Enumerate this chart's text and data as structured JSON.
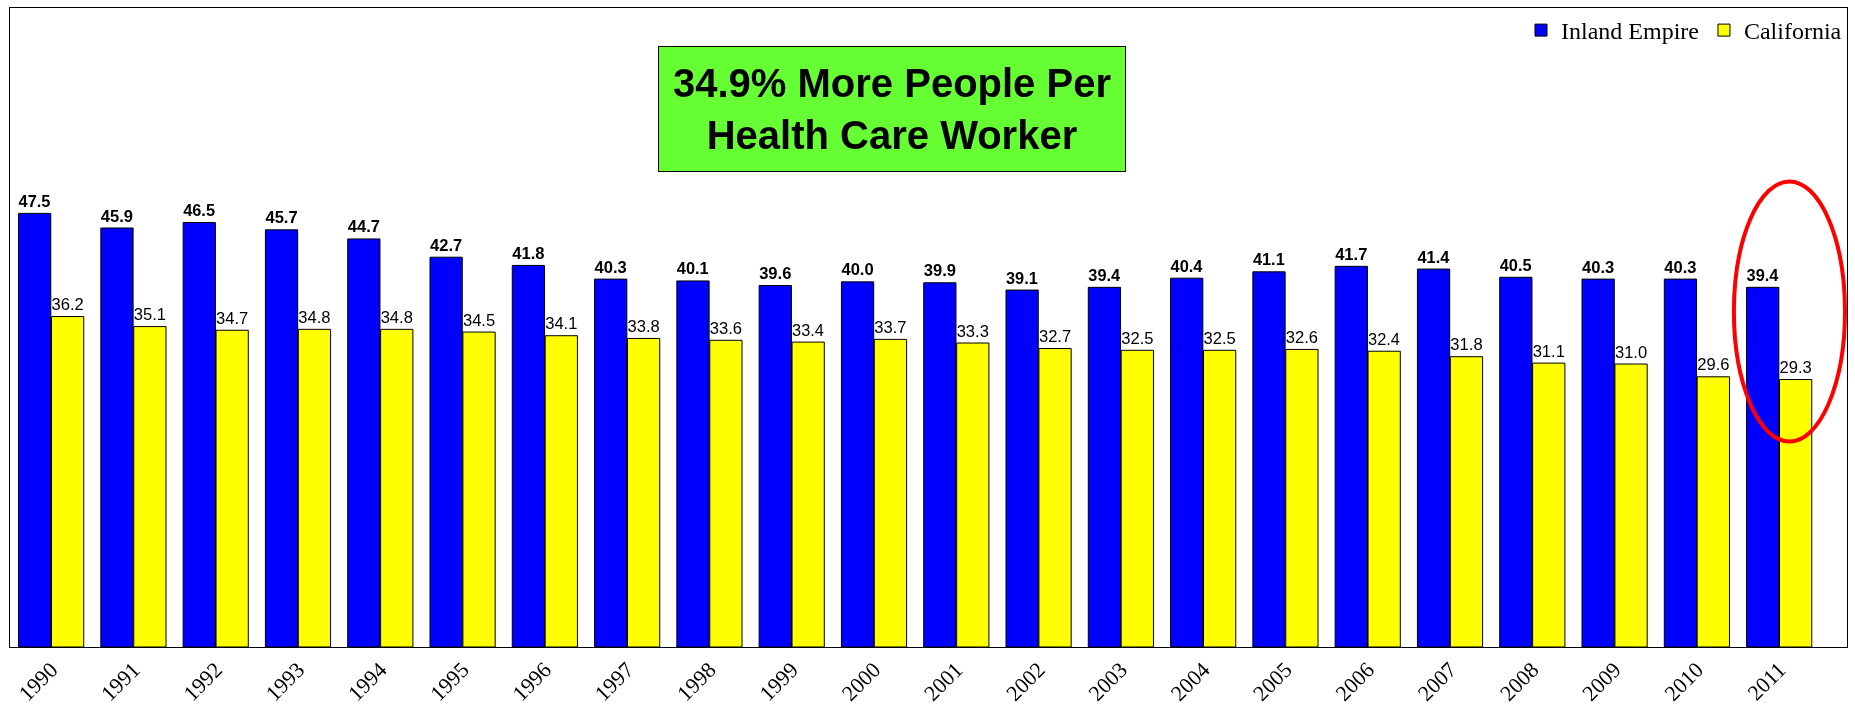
{
  "chart_data": {
    "type": "bar",
    "title": "34.9% More People Per Health Care Worker",
    "categories": [
      "1990",
      "1991",
      "1992",
      "1993",
      "1994",
      "1995",
      "1996",
      "1997",
      "1998",
      "1999",
      "2000",
      "2001",
      "2002",
      "2003",
      "2004",
      "2005",
      "2006",
      "2007",
      "2008",
      "2009",
      "2010",
      "2011"
    ],
    "series": [
      {
        "name": "Inland Empire",
        "color": "#0000ff",
        "values": [
          47.5,
          45.9,
          46.5,
          45.7,
          44.7,
          42.7,
          41.8,
          40.3,
          40.1,
          39.6,
          40.0,
          39.9,
          39.1,
          39.4,
          40.4,
          41.1,
          41.7,
          41.4,
          40.5,
          40.3,
          40.3,
          39.4
        ],
        "value_labels": [
          "47.5",
          "45.9",
          "46.5",
          "45.7",
          "44.7",
          "42.7",
          "41.8",
          "40.3",
          "40.1",
          "39.6",
          "40.0",
          "39.9",
          "39.1",
          "39.4",
          "40.4",
          "41.1",
          "41.7",
          "41.4",
          "40.5",
          "40.3",
          "40.3",
          "39.4"
        ]
      },
      {
        "name": "California",
        "color": "#ffff00",
        "values": [
          36.2,
          35.1,
          34.7,
          34.8,
          34.8,
          34.5,
          34.1,
          33.8,
          33.6,
          33.4,
          33.7,
          33.3,
          32.7,
          32.5,
          32.5,
          32.6,
          32.4,
          31.8,
          31.1,
          31.0,
          29.6,
          29.3
        ],
        "value_labels": [
          "36.2",
          "35.1",
          "34.7",
          "34.8",
          "34.8",
          "34.5",
          "34.1",
          "33.8",
          "33.6",
          "33.4",
          "33.7",
          "33.3",
          "32.7",
          "32.5",
          "32.5",
          "32.6",
          "32.4",
          "31.8",
          "31.1",
          "31.0",
          "29.6",
          "29.3"
        ]
      }
    ],
    "ylim": [
      0,
      70
    ],
    "legend": "top right",
    "grid": false,
    "tick_labels": "x"
  }
}
